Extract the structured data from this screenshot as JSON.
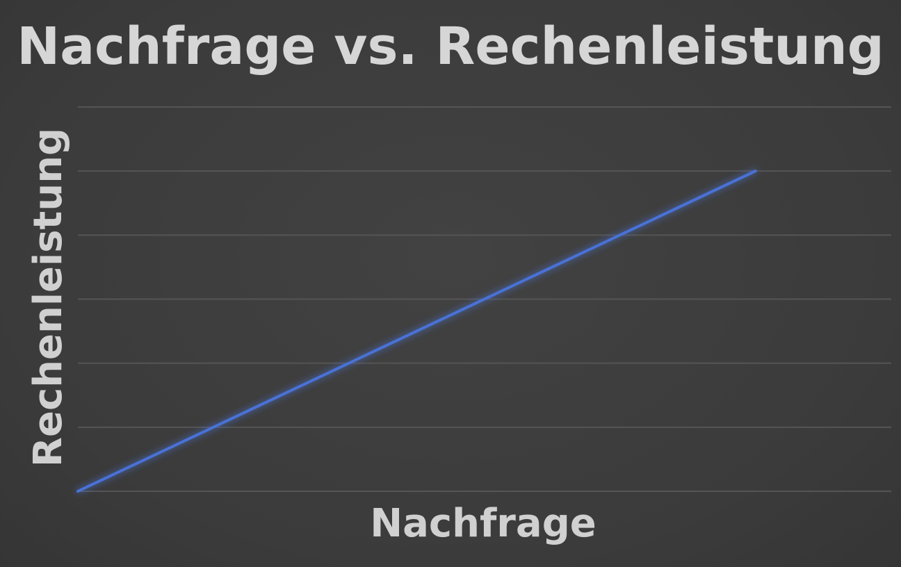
{
  "chart_data": {
    "type": "line",
    "title": "Nachfrage vs. Rechenleistung",
    "xlabel": "Nachfrage",
    "ylabel": "Rechenleistung",
    "xlim": [
      0,
      10
    ],
    "ylim": [
      0,
      6
    ],
    "grid": true,
    "series": [
      {
        "x": [
          0,
          8.33
        ],
        "values": [
          0,
          5
        ],
        "color": "#4a72d6"
      }
    ],
    "colors": {
      "background": "#3c3c3c",
      "grid": "#555555",
      "text": "#d4d4d4",
      "line": "#4a72d6"
    }
  }
}
